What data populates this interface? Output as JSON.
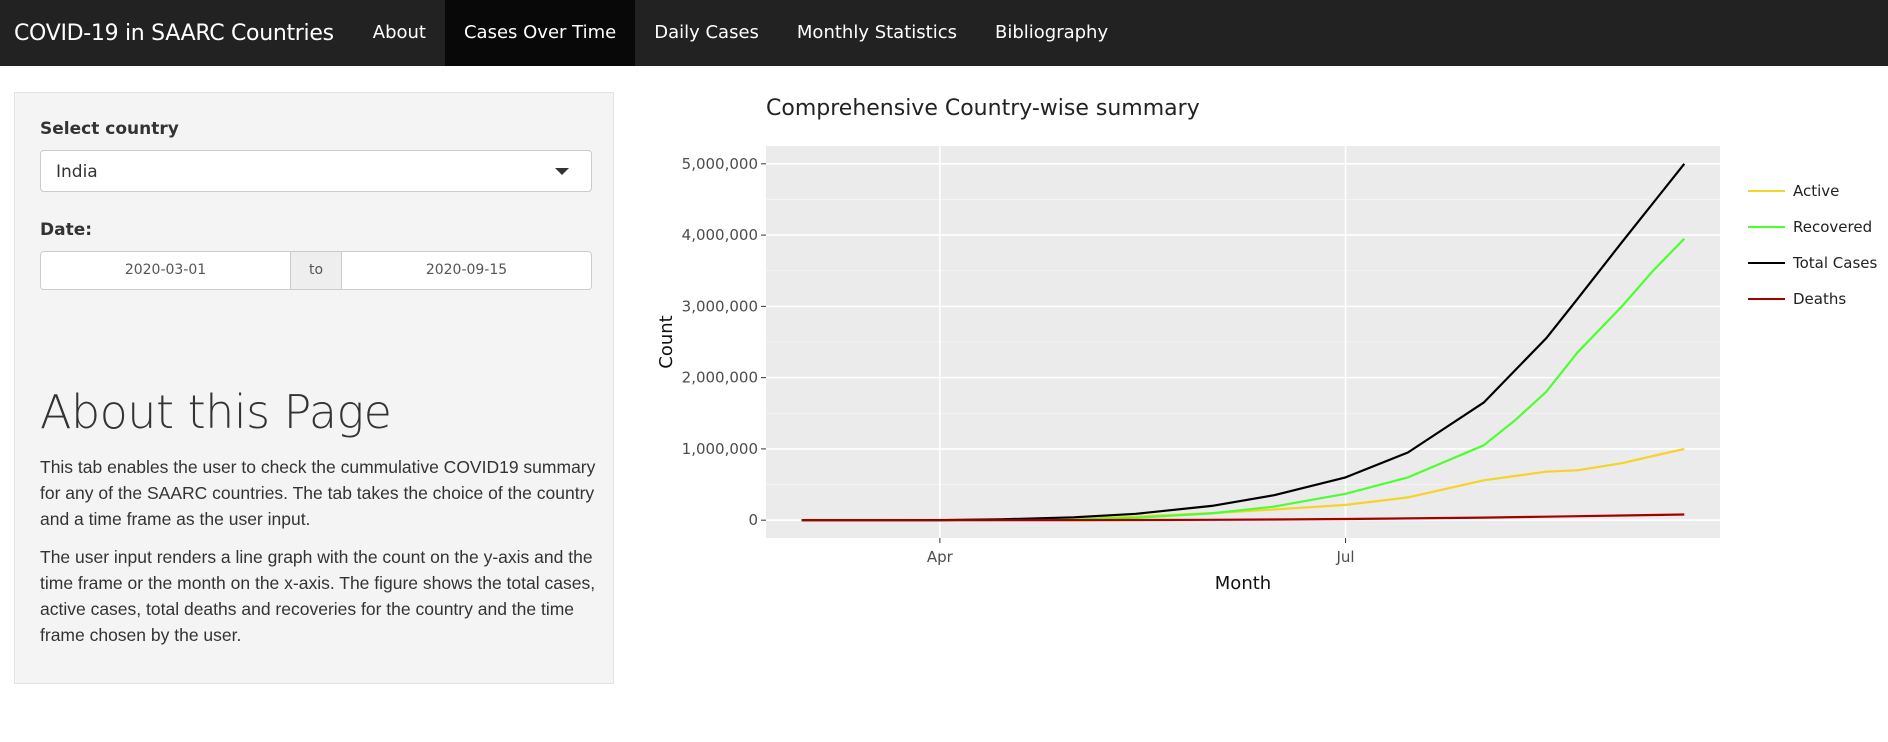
{
  "navbar": {
    "brand": "COVID-19 in SAARC Countries",
    "items": [
      {
        "label": "About"
      },
      {
        "label": "Cases Over Time"
      },
      {
        "label": "Daily Cases"
      },
      {
        "label": "Monthly Statistics"
      },
      {
        "label": "Bibliography"
      }
    ],
    "active_item": "Cases Over Time"
  },
  "sidebar": {
    "country_label": "Select country",
    "country_value": "India",
    "date_label": "Date:",
    "date_start": "2020-03-01",
    "date_separator": "to",
    "date_end": "2020-09-15",
    "about_title": "About this Page",
    "paragraph_1": "This tab enables the user to check the cummulative COVID19 summary for any of the SAARC countries. The tab takes the choice of the country and a time frame as the user input.",
    "paragraph_2": "The user input renders a line graph with the count on the y-axis and the time frame or the month on the x-axis. The figure shows the total cases, active cases, total deaths and recoveries for the country and the time frame chosen by the user."
  },
  "chart_data": {
    "type": "line",
    "title": "Comprehensive Country-wise summary",
    "xlabel": "Month",
    "ylabel": "Count",
    "x_tick_labels": [
      "Apr",
      "Jul"
    ],
    "x_tick_dates": [
      "2020-04-01",
      "2020-07-01"
    ],
    "y_tick_labels": [
      "0",
      "1,000,000",
      "2,000,000",
      "3,000,000",
      "4,000,000",
      "5,000,000"
    ],
    "ylim": [
      -250000,
      5250000
    ],
    "xlim": [
      "2020-02-22",
      "2020-09-23"
    ],
    "grid": true,
    "legend_position": "right",
    "x": [
      "2020-03-01",
      "2020-03-15",
      "2020-04-01",
      "2020-04-15",
      "2020-05-01",
      "2020-05-15",
      "2020-06-01",
      "2020-06-15",
      "2020-07-01",
      "2020-07-15",
      "2020-08-01",
      "2020-08-08",
      "2020-08-15",
      "2020-08-22",
      "2020-09-01",
      "2020-09-08",
      "2020-09-15"
    ],
    "series": [
      {
        "name": "Active",
        "color": "#f5d327",
        "values": [
          0,
          80,
          1000,
          8000,
          25000,
          50000,
          100000,
          150000,
          215000,
          320000,
          560000,
          620000,
          680000,
          700000,
          800000,
          900000,
          1000000
        ]
      },
      {
        "name": "Recovered",
        "color": "#4cff2e",
        "values": [
          0,
          5,
          200,
          2000,
          10000,
          35000,
          95000,
          190000,
          370000,
          600000,
          1050000,
          1400000,
          1800000,
          2350000,
          3000000,
          3500000,
          3950000
        ]
      },
      {
        "name": "Total Cases",
        "color": "#000000",
        "values": [
          1,
          110,
          1800,
          12000,
          40000,
          90000,
          200000,
          350000,
          600000,
          950000,
          1650000,
          2100000,
          2550000,
          3100000,
          3900000,
          4450000,
          5000000
        ]
      },
      {
        "name": "Deaths",
        "color": "#a50000",
        "values": [
          0,
          2,
          40,
          400,
          1300,
          3000,
          6000,
          10000,
          17000,
          25000,
          36000,
          43000,
          49000,
          56000,
          65000,
          73000,
          80000
        ]
      }
    ]
  }
}
